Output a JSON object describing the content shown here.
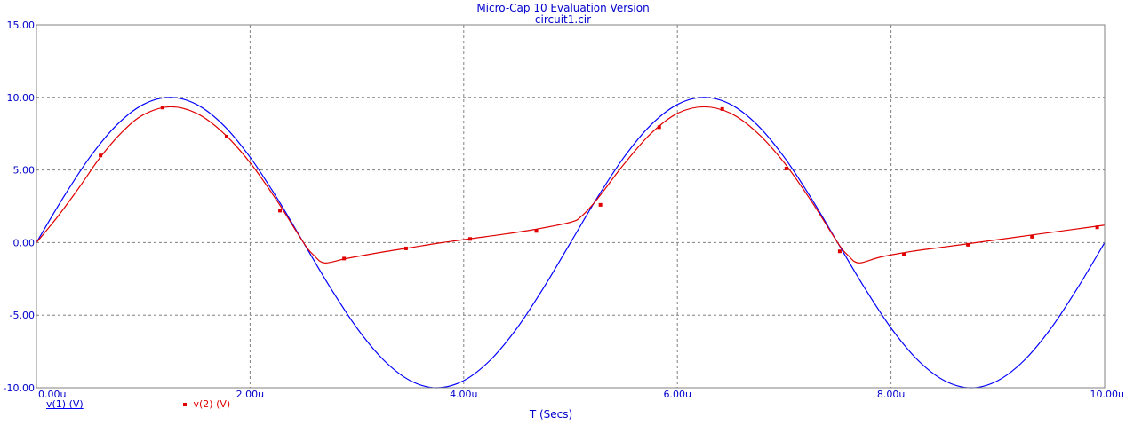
{
  "app": {
    "title": "Micro-Cap 10 Evaluation Version",
    "subtitle": "circuit1.cir"
  },
  "legend": {
    "v1_label": "v(1) (V)",
    "v2_label": "v(2) (V)"
  },
  "colors": {
    "v1": "#0000ff",
    "v2": "#e00000",
    "axis_text": "#0000cc",
    "grid": "#808080"
  },
  "chart_data": {
    "type": "line",
    "title": "Micro-Cap 10 Evaluation Version",
    "subtitle": "circuit1.cir",
    "xlabel": "T (Secs)",
    "ylabel": "",
    "xlim": [
      0,
      10
    ],
    "ylim": [
      -10,
      15
    ],
    "x_unit": "u",
    "x_ticks": [
      "0.00u",
      "2.00u",
      "4.00u",
      "6.00u",
      "8.00u",
      "10.00u"
    ],
    "y_ticks": [
      "-10.00",
      "-5.00",
      "0.00",
      "5.00",
      "10.00",
      "15.00"
    ],
    "grid": true,
    "series": [
      {
        "name": "v(1) (V)",
        "color": "#0000ff",
        "x": [
          0,
          0.25,
          0.5,
          0.75,
          1.0,
          1.25,
          1.5,
          1.75,
          2.0,
          2.25,
          2.5,
          2.75,
          3.0,
          3.25,
          3.5,
          3.75,
          4.0,
          4.25,
          4.5,
          4.75,
          5.0,
          5.25,
          5.5,
          5.75,
          6.0,
          6.25,
          6.5,
          6.75,
          7.0,
          7.25,
          7.5,
          7.75,
          8.0,
          8.25,
          8.5,
          8.75,
          9.0,
          9.25,
          9.5,
          9.75,
          10.0
        ],
        "values": [
          0,
          3.09,
          5.88,
          8.09,
          9.51,
          10.0,
          9.51,
          8.09,
          5.88,
          3.09,
          0,
          -3.09,
          -5.88,
          -8.09,
          -9.51,
          -10.0,
          -9.51,
          -8.09,
          -5.88,
          -3.09,
          0,
          3.09,
          5.88,
          8.09,
          9.51,
          10.0,
          9.51,
          8.09,
          5.88,
          3.09,
          0,
          -3.09,
          -5.88,
          -8.09,
          -9.51,
          -10.0,
          -9.51,
          -8.09,
          -5.88,
          -3.09,
          0
        ]
      },
      {
        "name": "v(2) (V)",
        "color": "#e00000",
        "x": [
          0,
          0.2,
          0.4,
          0.6,
          0.8,
          1.0,
          1.25,
          1.5,
          1.75,
          2.0,
          2.25,
          2.5,
          2.6,
          2.7,
          2.9,
          3.2,
          3.5,
          3.8,
          4.1,
          4.4,
          4.7,
          5.0,
          5.1,
          5.25,
          5.5,
          5.75,
          6.0,
          6.25,
          6.5,
          6.75,
          7.0,
          7.25,
          7.5,
          7.6,
          7.7,
          7.9,
          8.2,
          8.5,
          8.8,
          9.1,
          9.4,
          9.7,
          10.0
        ],
        "values": [
          0,
          1.8,
          3.8,
          5.9,
          7.6,
          8.8,
          9.35,
          8.9,
          7.55,
          5.5,
          2.9,
          0.0,
          -0.9,
          -1.4,
          -1.1,
          -0.7,
          -0.35,
          0.0,
          0.3,
          0.6,
          0.95,
          1.4,
          1.8,
          3.0,
          5.4,
          7.5,
          8.9,
          9.35,
          8.9,
          7.55,
          5.5,
          2.9,
          0.0,
          -0.9,
          -1.4,
          -1.0,
          -0.6,
          -0.3,
          0.0,
          0.3,
          0.6,
          0.9,
          1.2
        ]
      }
    ],
    "v2_markers": {
      "x": [
        0.6,
        1.18,
        1.78,
        2.28,
        2.88,
        3.46,
        4.06,
        4.68,
        5.28,
        5.83,
        6.42,
        7.02,
        7.52,
        8.12,
        8.72,
        9.32,
        9.93
      ],
      "values": [
        6.0,
        9.3,
        7.3,
        2.2,
        -1.1,
        -0.4,
        0.25,
        0.8,
        2.6,
        7.95,
        9.2,
        5.1,
        -0.6,
        -0.8,
        -0.15,
        0.4,
        1.05
      ]
    }
  }
}
